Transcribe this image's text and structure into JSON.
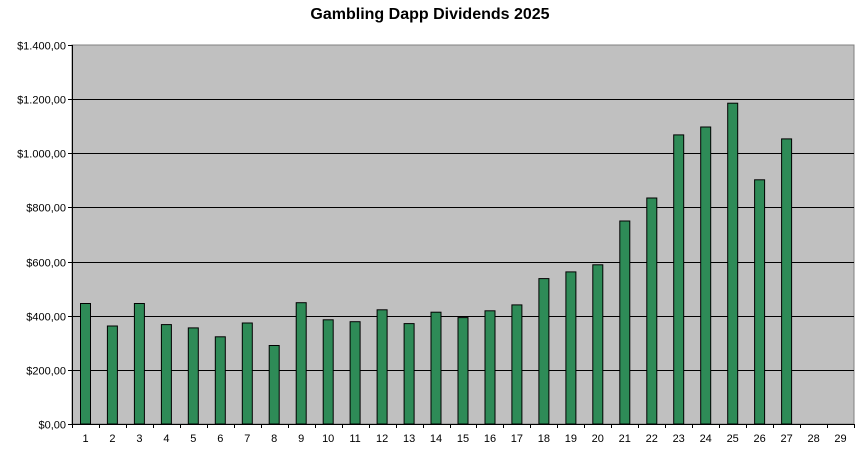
{
  "chart_data": {
    "type": "bar",
    "title": "Gambling Dapp Dividends 2025",
    "xlabel": "",
    "ylabel": "",
    "categories": [
      "1",
      "2",
      "3",
      "4",
      "5",
      "6",
      "7",
      "8",
      "9",
      "10",
      "11",
      "12",
      "13",
      "14",
      "15",
      "16",
      "17",
      "18",
      "19",
      "20",
      "21",
      "22",
      "23",
      "24",
      "25",
      "26",
      "27",
      "28",
      "29"
    ],
    "values": [
      445,
      362,
      445,
      367,
      355,
      322,
      373,
      290,
      448,
      385,
      378,
      422,
      371,
      413,
      393,
      418,
      440,
      537,
      562,
      588,
      750,
      835,
      1068,
      1097,
      1185,
      902,
      1053,
      null,
      null
    ],
    "ylim": [
      0,
      1400
    ],
    "yticks": [
      0,
      200,
      400,
      600,
      800,
      1000,
      1200,
      1400
    ],
    "ytick_labels": [
      "$0,00",
      "$200,00",
      "$400,00",
      "$600,00",
      "$800,00",
      "$1.000,00",
      "$1.200,00",
      "$1.400,00"
    ],
    "grid": true,
    "legend": "none",
    "colors": {
      "bar_fill": "#2e8b57",
      "bar_stroke": "#000000",
      "plot_background": "#c0c0c0",
      "gridline": "#000000"
    }
  }
}
